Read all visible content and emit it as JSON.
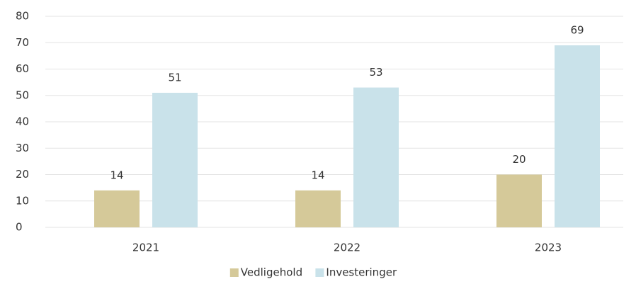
{
  "chart_data": {
    "type": "bar",
    "categories": [
      "2021",
      "2022",
      "2023"
    ],
    "series": [
      {
        "name": "Vedligehold",
        "color": "#d5c999",
        "values": [
          14,
          14,
          20
        ]
      },
      {
        "name": "Investeringer",
        "color": "#c9e2ea",
        "values": [
          51,
          53,
          69
        ]
      }
    ],
    "ylim": [
      0,
      80
    ],
    "yticks": [
      0,
      10,
      20,
      30,
      40,
      50,
      60,
      70,
      80
    ],
    "grid": true,
    "legend": "bottom"
  }
}
